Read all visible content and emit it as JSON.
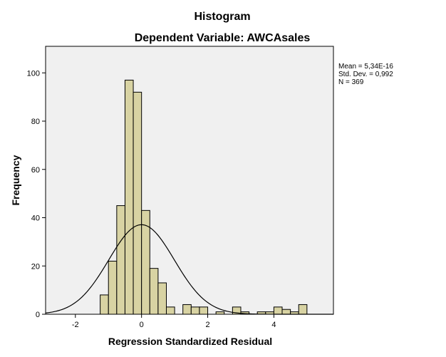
{
  "chart_data": {
    "type": "bar",
    "subtype": "histogram",
    "title": "Histogram",
    "subtitle": "Dependent Variable: AWCAsales",
    "xlabel": "Regression Standardized Residual",
    "ylabel": "Frequency",
    "xlim": [
      -2.9,
      5.8
    ],
    "ylim": [
      0,
      111
    ],
    "xticks": [
      -2,
      0,
      2,
      4
    ],
    "yticks": [
      0,
      20,
      40,
      60,
      80,
      100
    ],
    "bin_width": 0.25,
    "bins": [
      {
        "start": -1.25,
        "count": 8
      },
      {
        "start": -1.0,
        "count": 22
      },
      {
        "start": -0.75,
        "count": 45
      },
      {
        "start": -0.5,
        "count": 97
      },
      {
        "start": -0.25,
        "count": 92
      },
      {
        "start": 0.0,
        "count": 43
      },
      {
        "start": 0.25,
        "count": 19
      },
      {
        "start": 0.5,
        "count": 13
      },
      {
        "start": 0.75,
        "count": 3
      },
      {
        "start": 1.0,
        "count": 0
      },
      {
        "start": 1.25,
        "count": 4
      },
      {
        "start": 1.5,
        "count": 3
      },
      {
        "start": 1.75,
        "count": 3
      },
      {
        "start": 2.0,
        "count": 0
      },
      {
        "start": 2.25,
        "count": 1
      },
      {
        "start": 2.5,
        "count": 0
      },
      {
        "start": 2.75,
        "count": 3
      },
      {
        "start": 3.0,
        "count": 1
      },
      {
        "start": 3.25,
        "count": 0
      },
      {
        "start": 3.5,
        "count": 1
      },
      {
        "start": 3.75,
        "count": 1
      },
      {
        "start": 4.0,
        "count": 3
      },
      {
        "start": 4.25,
        "count": 2
      },
      {
        "start": 4.5,
        "count": 1
      },
      {
        "start": 4.75,
        "count": 4
      }
    ],
    "normal_curve": {
      "mean": 0,
      "sd": 0.992,
      "n": 369
    },
    "stats": {
      "mean": "Mean = 5,34E-16",
      "std_dev": "Std. Dev. = 0,992",
      "n": "N = 369"
    },
    "colors": {
      "bar_fill": "#d8d3a3",
      "bar_stroke": "#000000",
      "plot_background": "#f0f0f0",
      "curve": "#000000"
    }
  }
}
